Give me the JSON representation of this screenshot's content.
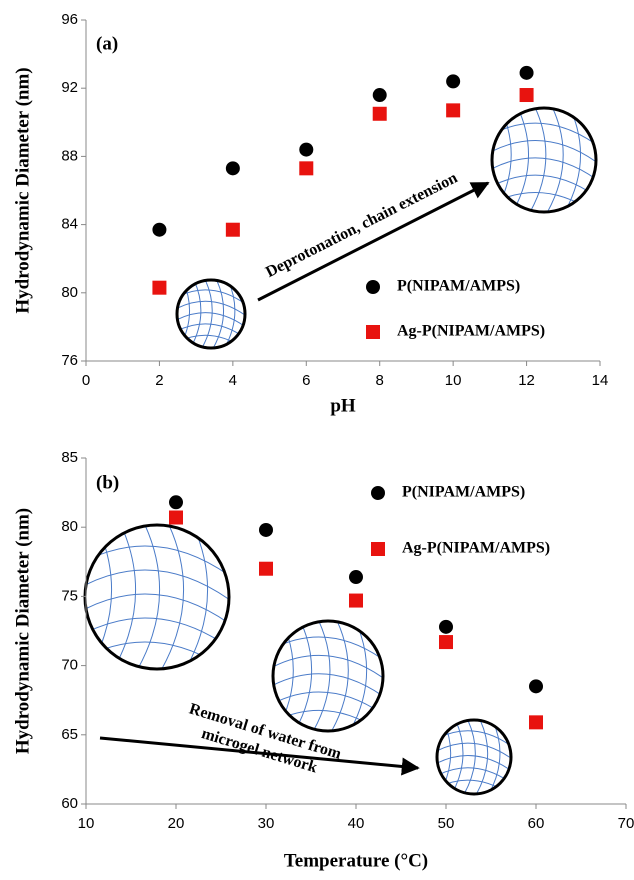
{
  "chart_data": [
    {
      "type": "scatter",
      "panel_label": "(a)",
      "annotation": "Deprotonation, chain extension",
      "xlabel": "pH",
      "ylabel": "Hydrodynamic Diameter (nm)",
      "x": [
        2,
        4,
        6,
        8,
        10,
        12
      ],
      "series": [
        {
          "name": "P(NIPAM/AMPS)",
          "color": "#000000",
          "marker": "circle",
          "values": [
            83.7,
            87.3,
            88.4,
            91.6,
            92.4,
            92.9
          ]
        },
        {
          "name": "Ag-P(NIPAM/AMPS)",
          "color": "#e8130f",
          "marker": "square",
          "values": [
            80.3,
            83.7,
            87.3,
            90.5,
            90.7,
            91.6
          ]
        }
      ],
      "xlim": [
        0,
        14
      ],
      "xticks": [
        0,
        2,
        4,
        6,
        8,
        10,
        12,
        14
      ],
      "ylim": [
        76,
        96
      ],
      "yticks": [
        76,
        80,
        84,
        88,
        92,
        96
      ]
    },
    {
      "type": "scatter",
      "panel_label": "(b)",
      "annotation": [
        "Removal of water from",
        "microgel network"
      ],
      "xlabel": "Temperature (°C)",
      "ylabel": "Hydrodynamic Diameter (nm)",
      "x": [
        20,
        30,
        40,
        50,
        60
      ],
      "series": [
        {
          "name": "P(NIPAM/AMPS)",
          "color": "#000000",
          "marker": "circle",
          "values": [
            81.8,
            79.8,
            76.4,
            72.8,
            68.5
          ]
        },
        {
          "name": "Ag-P(NIPAM/AMPS)",
          "color": "#e8130f",
          "marker": "square",
          "values": [
            80.7,
            77.0,
            74.7,
            71.7,
            65.9
          ]
        }
      ],
      "xlim": [
        10,
        70
      ],
      "xticks": [
        10,
        20,
        30,
        40,
        50,
        60,
        70
      ],
      "ylim": [
        60,
        85
      ],
      "yticks": [
        60,
        65,
        70,
        75,
        80,
        85
      ]
    }
  ]
}
